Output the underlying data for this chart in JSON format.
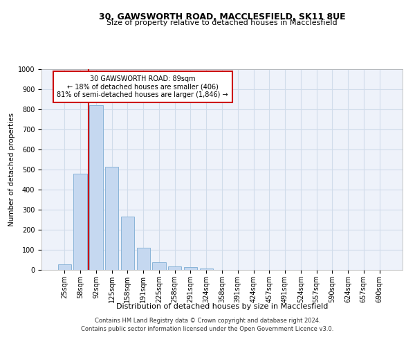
{
  "title": "30, GAWSWORTH ROAD, MACCLESFIELD, SK11 8UE",
  "subtitle": "Size of property relative to detached houses in Macclesfield",
  "xlabel": "Distribution of detached houses by size in Macclesfield",
  "ylabel": "Number of detached properties",
  "categories": [
    "25sqm",
    "58sqm",
    "92sqm",
    "125sqm",
    "158sqm",
    "191sqm",
    "225sqm",
    "258sqm",
    "291sqm",
    "324sqm",
    "358sqm",
    "391sqm",
    "424sqm",
    "457sqm",
    "491sqm",
    "524sqm",
    "557sqm",
    "590sqm",
    "624sqm",
    "657sqm",
    "690sqm"
  ],
  "values": [
    28,
    480,
    820,
    515,
    265,
    110,
    38,
    18,
    15,
    8,
    0,
    0,
    0,
    0,
    0,
    0,
    0,
    0,
    0,
    0,
    0
  ],
  "bar_color": "#c5d8f0",
  "bar_edge_color": "#8ab4d8",
  "vline_color": "#cc0000",
  "vline_x_index": 1.94,
  "annotation_line1": "30 GAWSWORTH ROAD: 89sqm",
  "annotation_line2": "← 18% of detached houses are smaller (406)",
  "annotation_line3": "81% of semi-detached houses are larger (1,846) →",
  "annotation_box_facecolor": "#ffffff",
  "annotation_box_edgecolor": "#cc0000",
  "ylim": [
    0,
    1000
  ],
  "yticks": [
    0,
    100,
    200,
    300,
    400,
    500,
    600,
    700,
    800,
    900,
    1000
  ],
  "grid_color": "#d0dcea",
  "background_color": "#eef2fa",
  "footer_line1": "Contains HM Land Registry data © Crown copyright and database right 2024.",
  "footer_line2": "Contains public sector information licensed under the Open Government Licence v3.0.",
  "title_fontsize": 9,
  "subtitle_fontsize": 8,
  "ylabel_fontsize": 7.5,
  "xlabel_fontsize": 8,
  "tick_fontsize": 7,
  "annotation_fontsize": 7,
  "footer_fontsize": 6
}
